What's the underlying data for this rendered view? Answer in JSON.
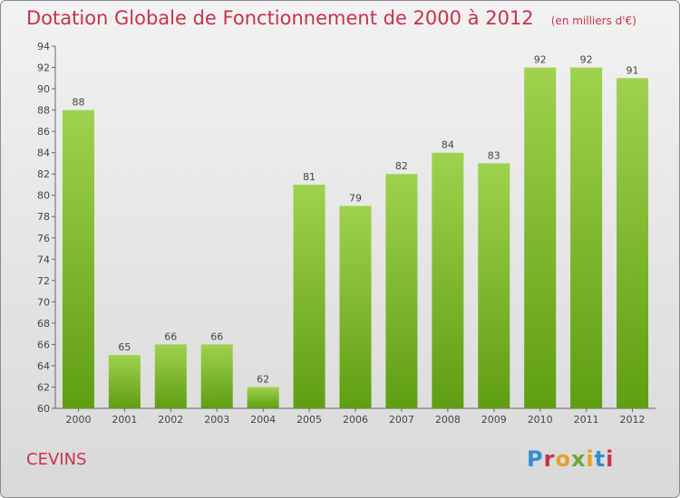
{
  "header": {
    "title": "Dotation Globale de Fonctionnement de 2000 à 2012",
    "subtitle": "(en milliers d'€)"
  },
  "footer": {
    "commune": "CEVINS",
    "logo_text": "Proxiti"
  },
  "colors": {
    "title": "#c8324c",
    "bar_light": "#9fd24e",
    "bar_dark": "#5f9e12",
    "logo": [
      "#2f8fd0",
      "#e8a02a",
      "#6aa832",
      "#c8324c"
    ]
  },
  "chart_data": {
    "type": "bar",
    "title": "Dotation Globale de Fonctionnement de 2000 à 2012",
    "subtitle": "(en milliers d'€)",
    "categories": [
      "2000",
      "2001",
      "2002",
      "2003",
      "2004",
      "2005",
      "2006",
      "2007",
      "2008",
      "2009",
      "2010",
      "2011",
      "2012"
    ],
    "values": [
      88,
      65,
      66,
      66,
      62,
      81,
      79,
      82,
      84,
      83,
      92,
      92,
      91
    ],
    "ylim": [
      60,
      94
    ],
    "yticks": [
      60,
      62,
      64,
      66,
      68,
      70,
      72,
      74,
      76,
      78,
      80,
      82,
      84,
      86,
      88,
      90,
      92,
      94
    ],
    "xlabel": "",
    "ylabel": "",
    "grid": false,
    "data_labels": true
  }
}
